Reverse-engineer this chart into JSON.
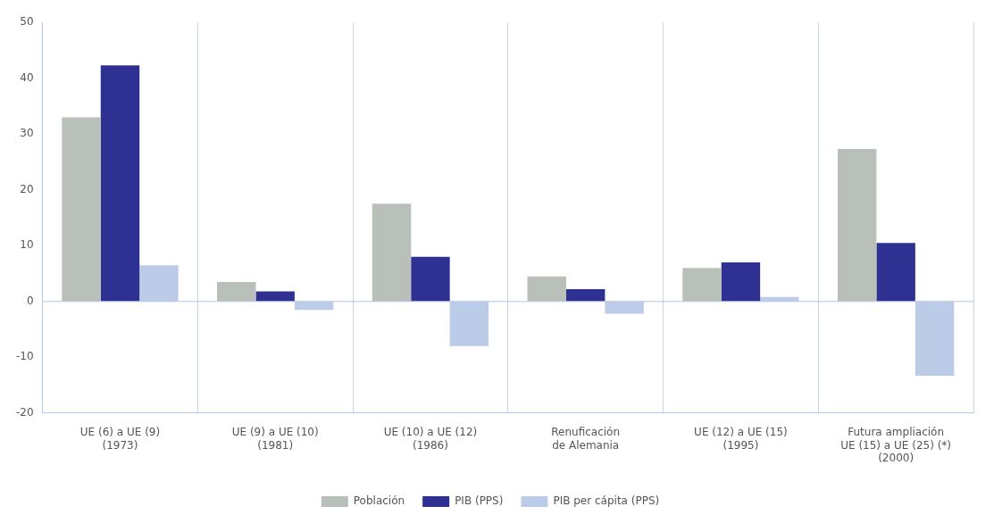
{
  "chart_data": {
    "type": "bar",
    "categories": [
      "UE (6) a UE (9)\n(1973)",
      "UE (9) a UE (10)\n(1981)",
      "UE (10) a UE (12)\n(1986)",
      "Renuficación\nde Alemania",
      "UE (12) a UE (15)\n(1995)",
      "Futura ampliación\nUE (15) a UE (25) (*)\n(2000)"
    ],
    "series": [
      {
        "name": "Población",
        "color": "#b9bfb9",
        "values": [
          33,
          3.5,
          17.5,
          4.5,
          6,
          27.3
        ]
      },
      {
        "name": "PIB (PPS)",
        "color": "#2e3192",
        "values": [
          42.3,
          1.8,
          8,
          2.2,
          7,
          10.5
        ]
      },
      {
        "name": "PIB per cápita (PPS)",
        "color": "#bccbe8",
        "values": [
          6.5,
          -1.5,
          -8,
          -2.2,
          0.8,
          -13.3
        ]
      }
    ],
    "ylim": [
      -20,
      50
    ],
    "yticks": [
      -20,
      -10,
      0,
      10,
      20,
      30,
      40,
      50
    ],
    "ref_lines": [
      {
        "axis": "y",
        "value": 0,
        "color": "#b5c6e6"
      }
    ],
    "grid": "x",
    "legend": "bottom"
  }
}
